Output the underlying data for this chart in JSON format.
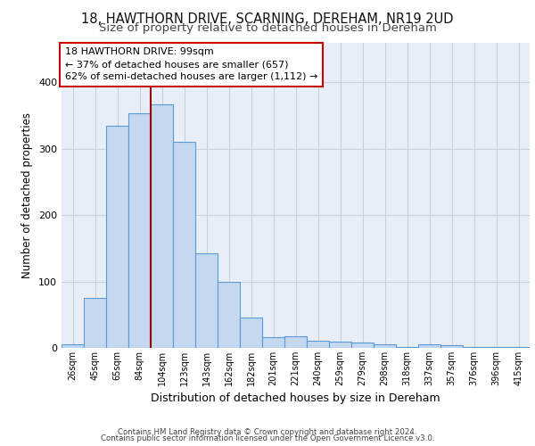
{
  "title1": "18, HAWTHORN DRIVE, SCARNING, DEREHAM, NR19 2UD",
  "title2": "Size of property relative to detached houses in Dereham",
  "xlabel": "Distribution of detached houses by size in Dereham",
  "ylabel": "Number of detached properties",
  "categories": [
    "26sqm",
    "45sqm",
    "65sqm",
    "84sqm",
    "104sqm",
    "123sqm",
    "143sqm",
    "162sqm",
    "182sqm",
    "201sqm",
    "221sqm",
    "240sqm",
    "259sqm",
    "279sqm",
    "298sqm",
    "318sqm",
    "337sqm",
    "357sqm",
    "376sqm",
    "396sqm",
    "415sqm"
  ],
  "values": [
    5,
    75,
    335,
    353,
    367,
    310,
    143,
    100,
    46,
    16,
    17,
    11,
    9,
    8,
    6,
    2,
    5,
    4,
    2,
    1,
    2
  ],
  "bar_color": "#c5d8f0",
  "bar_edge_color": "#5b9bd5",
  "grid_color": "#c8cfe0",
  "bg_color": "#e8eef8",
  "property_line_x": 4.0,
  "annotation_text": "18 HAWTHORN DRIVE: 99sqm\n← 37% of detached houses are smaller (657)\n62% of semi-detached houses are larger (1,112) →",
  "annotation_box_color": "#ffffff",
  "annotation_box_edge": "#cc0000",
  "vline_color": "#990000",
  "footer1": "Contains HM Land Registry data © Crown copyright and database right 2024.",
  "footer2": "Contains public sector information licensed under the Open Government Licence v3.0.",
  "ylim": [
    0,
    460
  ],
  "title1_fontsize": 10.5,
  "title2_fontsize": 9.5,
  "xlabel_fontsize": 9,
  "ylabel_fontsize": 8.5
}
